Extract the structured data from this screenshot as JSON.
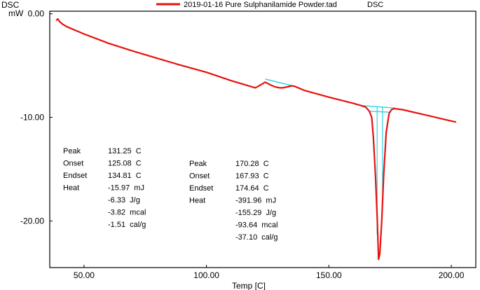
{
  "header": {
    "y_unit_top": "DSC",
    "y_unit_bottom": "mW",
    "legend_label": "2019-01-16 Pure Sulphanilamide Powder.tad",
    "legend_tag": "DSC",
    "x_axis_label": "Temp [C]"
  },
  "colors": {
    "curve": "#e8120c",
    "baseline": "#2ad4e6",
    "frame": "#000000"
  },
  "chart_data": {
    "type": "line",
    "title": "",
    "xlabel": "Temp [C]",
    "ylabel": "DSC mW",
    "xlim": [
      36,
      210
    ],
    "ylim": [
      -24.5,
      0.25
    ],
    "x_ticks": [
      50,
      100,
      150,
      200
    ],
    "x_tick_labels": [
      "50.00",
      "100.00",
      "150.00",
      "200.00"
    ],
    "y_ticks": [
      0,
      -10,
      -20
    ],
    "y_tick_labels": [
      "0.00",
      "-10.00",
      "-20.00"
    ],
    "grid": false,
    "legend_position": "top",
    "series": [
      {
        "name": "2019-01-16 Pure Sulphanilamide Powder.tad",
        "x": [
          38.6,
          39.3,
          40.0,
          41.2,
          43.0,
          50.0,
          60.0,
          70.0,
          80.0,
          90.0,
          100.0,
          110.0,
          120.0,
          124.0,
          126.0,
          128.0,
          130.0,
          131.25,
          133.0,
          134.8,
          136.0,
          140.0,
          150.0,
          160.0,
          163.0,
          165.0,
          166.5,
          167.5,
          168.2,
          169.0,
          169.8,
          170.28,
          170.8,
          171.6,
          172.4,
          173.4,
          174.6,
          175.6,
          176.6,
          180.0,
          190.0,
          200.0,
          202.0
        ],
        "y": [
          -0.65,
          -0.5,
          -0.75,
          -1.0,
          -1.25,
          -1.95,
          -2.85,
          -3.6,
          -4.3,
          -5.0,
          -5.65,
          -6.45,
          -7.15,
          -6.6,
          -6.85,
          -7.05,
          -7.15,
          -7.15,
          -7.05,
          -6.95,
          -7.0,
          -7.4,
          -8.05,
          -8.65,
          -8.85,
          -9.0,
          -9.4,
          -10.0,
          -12.0,
          -15.5,
          -20.0,
          -23.7,
          -23.2,
          -20.0,
          -15.5,
          -11.5,
          -9.6,
          -9.25,
          -9.15,
          -9.25,
          -9.8,
          -10.35,
          -10.45
        ]
      }
    ],
    "baselines": [
      {
        "x": [
          124.0,
          136.0
        ],
        "y": [
          -6.3,
          -7.0
        ]
      },
      {
        "x": [
          163.0,
          177.0
        ],
        "y": [
          -8.85,
          -9.1
        ]
      }
    ],
    "peak_fill_left": {
      "x": [
        166.5,
        167.5,
        168.2,
        169.0,
        169.8,
        170.28,
        170.8,
        171.6,
        172.4,
        173.4,
        174.6
      ],
      "y": [
        -9.4,
        -10.0,
        -12.0,
        -15.5,
        -20.0,
        -23.4,
        -23.0,
        -19.8,
        -15.3,
        -11.3,
        -9.5
      ]
    },
    "annotations": [
      {
        "rows": [
          {
            "label": "Peak",
            "value": "131.25  C"
          },
          {
            "label": "Onset",
            "value": "125.08  C"
          },
          {
            "label": "Endset",
            "value": "134.81  C"
          },
          {
            "label": "Heat",
            "value": "-15.97  mJ"
          },
          {
            "label": "",
            "value": "-6.33  J/g"
          },
          {
            "label": "",
            "value": "-3.82  mcal"
          },
          {
            "label": "",
            "value": "-1.51  cal/g"
          }
        ]
      },
      {
        "rows": [
          {
            "label": "Peak",
            "value": "170.28  C"
          },
          {
            "label": "Onset",
            "value": "167.93  C"
          },
          {
            "label": "Endset",
            "value": "174.64  C"
          },
          {
            "label": "Heat",
            "value": "-391.96  mJ"
          },
          {
            "label": "",
            "value": "-155.29  J/g"
          },
          {
            "label": "",
            "value": "-93.64  mcal"
          },
          {
            "label": "",
            "value": "-37.10  cal/g"
          }
        ]
      }
    ]
  }
}
